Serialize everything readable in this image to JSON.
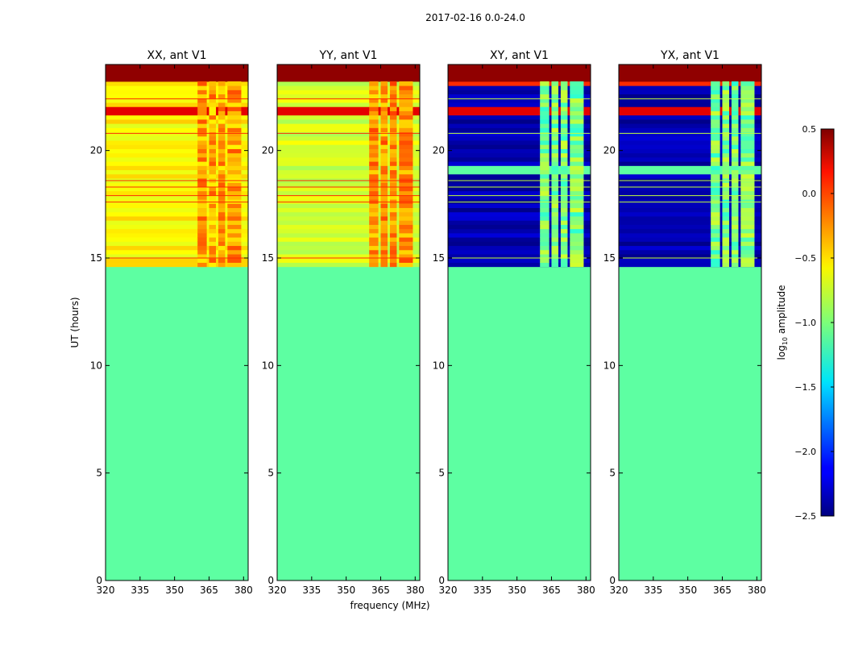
{
  "figure_title": "2017-02-16 0.0-24.0",
  "chart_data": {
    "type": "heatmap",
    "ylabel": "UT (hours)",
    "xlabel": "frequency (MHz)",
    "xlim": [
      320,
      382
    ],
    "ylim": [
      0,
      24
    ],
    "xticks": [
      320,
      335,
      350,
      365,
      380
    ],
    "yticks": [
      0,
      5,
      10,
      15,
      20
    ],
    "data_start_hour": 14.6,
    "colormap": "jet",
    "panels": [
      {
        "title": "XX, ant V1",
        "base_value": -0.6,
        "bright_block_value": -0.35
      },
      {
        "title": "YY, ant V1",
        "base_value": -0.75,
        "bright_block_value": -0.3
      },
      {
        "title": "XY, ant V1",
        "base_value": -2.35,
        "bright_block_value": -1.0
      },
      {
        "title": "YX, ant V1",
        "base_value": -2.35,
        "bright_block_value": -1.0
      }
    ],
    "bright_frequency_range_mhz": [
      360,
      379
    ],
    "colorbar": {
      "label_main": "log",
      "label_sub": "10",
      "label_rest": " amplitude",
      "range": [
        -2.5,
        0.5
      ],
      "ticks": [
        "0.5",
        "0.0",
        "−0.5",
        "−1.0",
        "−1.5",
        "−2.0",
        "−2.5"
      ],
      "tick_values": [
        0.5,
        0.0,
        -0.5,
        -1.0,
        -1.5,
        -2.0,
        -2.5
      ],
      "no_data_value": -1.1
    }
  }
}
